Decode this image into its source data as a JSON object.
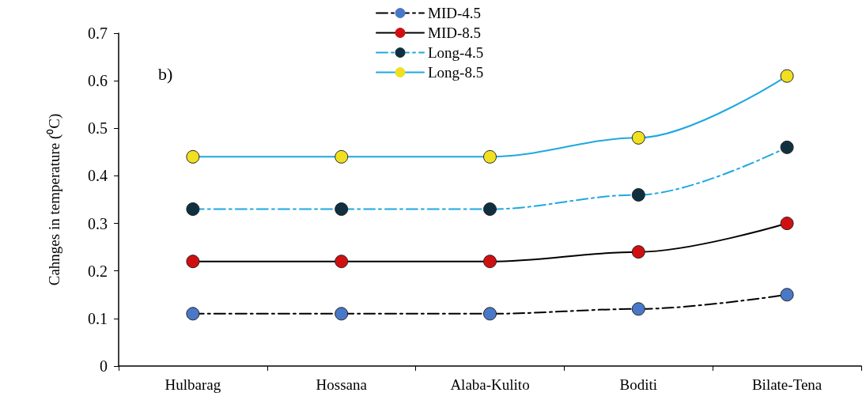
{
  "chart_data": {
    "type": "line",
    "ylabel": "Cahnges in temperature (⁰C)",
    "annotations": [
      "b)"
    ],
    "categories": [
      "Hulbarag",
      "Hossana",
      "Alaba-Kulito",
      "Boditi",
      "Bilate-Tena"
    ],
    "series": [
      {
        "name": "MID-4.5",
        "color": "#000000",
        "colors": [
          "#4a78c8",
          "#4a78c8",
          "#4a78c8",
          "#4a78c8",
          "#4a78c8"
        ],
        "line_style": "dashed",
        "values": [
          0.11,
          0.11,
          0.11,
          0.12,
          0.15
        ]
      },
      {
        "name": "MID-8.5",
        "color": "#000000",
        "colors": [
          "#d01010",
          "#d01010",
          "#d01010",
          "#d01010",
          "#d01010"
        ],
        "line_style": "solid",
        "values": [
          0.22,
          0.22,
          0.22,
          0.24,
          0.3
        ]
      },
      {
        "name": "Long-4.5",
        "color": "#1fa8e0",
        "colors": [
          "#103040",
          "#103040",
          "#103040",
          "#103040",
          "#103040"
        ],
        "line_style": "dashed",
        "values": [
          0.33,
          0.33,
          0.33,
          0.36,
          0.46
        ]
      },
      {
        "name": "Long-8.5",
        "color": "#1fa8e0",
        "colors": [
          "#f0e020",
          "#f0e020",
          "#f0e020",
          "#f0e020",
          "#f0e020"
        ],
        "line_style": "solid",
        "values": [
          0.44,
          0.44,
          0.44,
          0.48,
          0.61
        ]
      }
    ],
    "ylim": [
      0,
      0.7
    ],
    "yticks": [
      0,
      0.1,
      0.2,
      0.3,
      0.4,
      0.5,
      0.6,
      0.7
    ],
    "grid": false,
    "legend": "top",
    "marker": "circle"
  }
}
